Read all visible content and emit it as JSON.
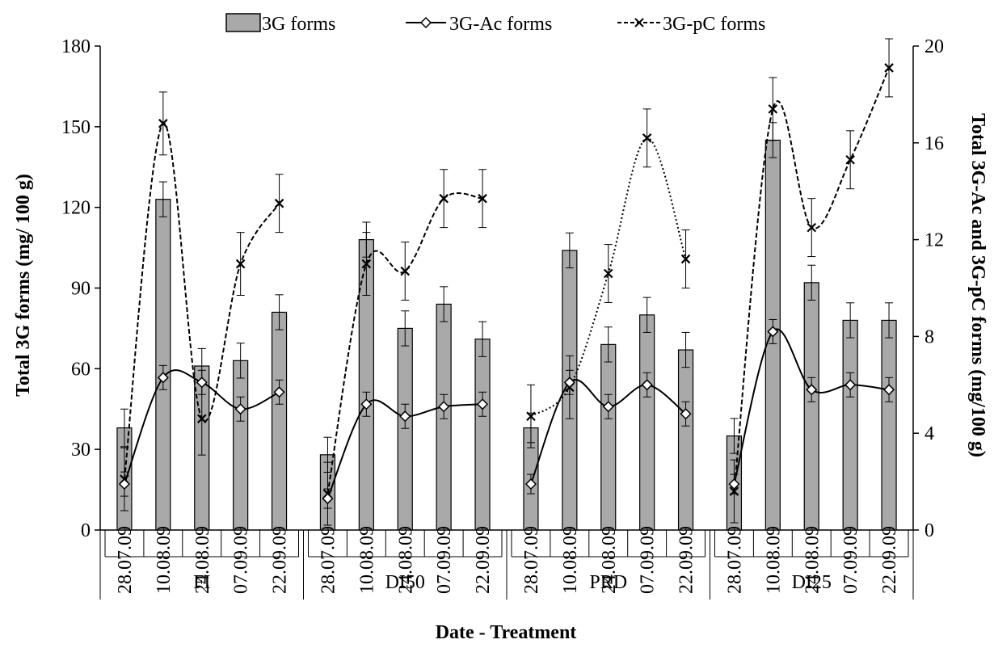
{
  "chart_data": {
    "type": "bar",
    "xlabel": "Date - Treatment",
    "ylabel": "Total 3G forms (mg/ 100 g)",
    "y2label": "Total 3G-Ac and 3G-pC forms (mg/100 g)",
    "ylim": [
      0,
      180
    ],
    "y2lim": [
      0,
      20
    ],
    "yticks": [
      0,
      30,
      60,
      90,
      120,
      150,
      180
    ],
    "y2ticks": [
      0,
      4,
      8,
      12,
      16,
      20
    ],
    "legend_position": "top",
    "grid": false,
    "groups": [
      {
        "label": "FI",
        "dates": [
          "28.07.09",
          "10.08.09",
          "24.08.09",
          "07.09.09",
          "22.09.09"
        ]
      },
      {
        "label": "DI50",
        "dates": [
          "28.07.09",
          "10.08.09",
          "24.08.09",
          "07.09.09",
          "22.09.09"
        ]
      },
      {
        "label": "PRD",
        "dates": [
          "28.07.09",
          "10.08.09",
          "24.08.09",
          "07.09.09",
          "22.09.09"
        ]
      },
      {
        "label": "DI25",
        "dates": [
          "28.07.09",
          "10.08.09",
          "24.08.09",
          "07.09.09",
          "22.09.09"
        ]
      }
    ],
    "series": [
      {
        "name": "3G forms",
        "kind": "bar",
        "axis": "left",
        "color": "#a9a9a9",
        "values": [
          [
            38,
            123,
            61,
            63,
            81
          ],
          [
            28,
            108,
            75,
            84,
            71
          ],
          [
            38,
            104,
            69,
            80,
            67
          ],
          [
            35,
            145,
            92,
            78,
            78
          ]
        ],
        "errors": [
          [
            7,
            6.5,
            6.5,
            6.5,
            6.5
          ],
          [
            6.5,
            6.5,
            6.5,
            6.5,
            6.5
          ],
          [
            5.5,
            6.5,
            6.5,
            6.5,
            6.5
          ],
          [
            6.5,
            6.5,
            6.5,
            6.5,
            6.5
          ]
        ]
      },
      {
        "name": "3G-Ac forms",
        "kind": "line",
        "style": "solid",
        "marker": "diamond",
        "axis": "right",
        "values": [
          [
            1.9,
            6.3,
            6.1,
            5.0,
            5.7
          ],
          [
            1.3,
            5.2,
            4.7,
            5.1,
            5.2
          ],
          [
            1.9,
            6.1,
            5.1,
            6.0,
            4.8
          ],
          [
            1.9,
            8.2,
            5.8,
            6.0,
            5.8
          ]
        ],
        "errors": [
          [
            0.5,
            0.5,
            0.5,
            0.5,
            0.5
          ],
          [
            0.4,
            0.5,
            0.5,
            0.5,
            0.5
          ],
          [
            0.4,
            0.5,
            0.5,
            0.5,
            0.5
          ],
          [
            0.4,
            0.5,
            0.5,
            0.5,
            0.5
          ]
        ]
      },
      {
        "name": "3G-pC forms",
        "kind": "line",
        "style": "dashed",
        "marker": "x",
        "axis": "right",
        "values": [
          [
            2.1,
            16.8,
            4.6,
            11.0,
            13.5
          ],
          [
            1.5,
            11.0,
            10.7,
            13.7,
            13.7
          ],
          [
            4.7,
            5.9,
            10.6,
            16.2,
            11.2
          ],
          [
            1.6,
            17.4,
            12.5,
            15.3,
            19.1
          ]
        ],
        "errors": [
          [
            1.3,
            1.3,
            1.5,
            1.3,
            1.2
          ],
          [
            1.3,
            1.3,
            1.2,
            1.2,
            1.2
          ],
          [
            1.3,
            1.3,
            1.2,
            1.2,
            1.2
          ],
          [
            1.3,
            1.3,
            1.2,
            1.2,
            1.2
          ]
        ]
      }
    ]
  }
}
